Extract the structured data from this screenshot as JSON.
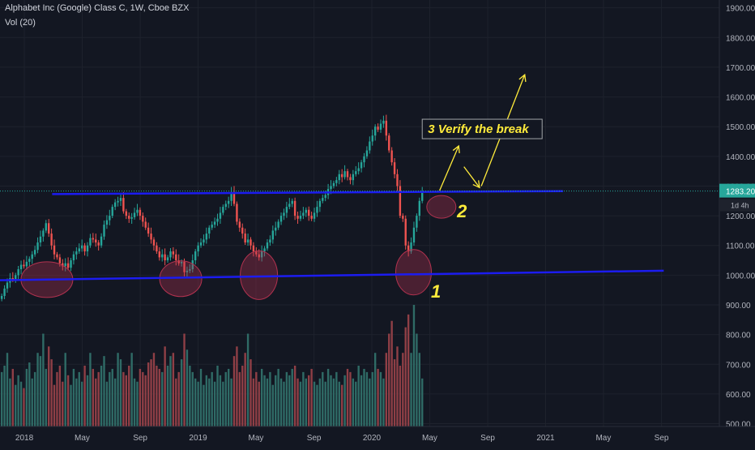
{
  "chart": {
    "title": "Alphabet Inc (Google) Class C, 1W, Cboe BZX",
    "volume_label": "Vol (20)"
  },
  "colors": {
    "background": "#131722",
    "up": "#26a69a",
    "down": "#ef5350",
    "vol_up": "#2f6b66",
    "vol_down": "#8f3f46",
    "trendline": "#1c1cf0",
    "annotation": "#ffeb3b",
    "circle": "#b2324f",
    "axis_text": "#b2b5be",
    "price_tag": "#26a69a"
  },
  "chart_data": {
    "type": "candlestick",
    "y_ticks": [
      "1900.00",
      "1800.00",
      "1700.00",
      "1600.00",
      "1500.00",
      "1400.00",
      "1300.00",
      "1200.00",
      "1100.00",
      "1000.00",
      "900.00",
      "800.00",
      "700.00",
      "600.00",
      "500.00"
    ],
    "y_tick_values": [
      1900,
      1800,
      1700,
      1600,
      1500,
      1400,
      1300,
      1200,
      1100,
      1000,
      900,
      800,
      700,
      600,
      500
    ],
    "ylim": [
      496,
      1910
    ],
    "x_ticks": [
      {
        "label": "2018",
        "t": 2018.0
      },
      {
        "label": "May",
        "t": 2018.333
      },
      {
        "label": "Sep",
        "t": 2018.667
      },
      {
        "label": "2019",
        "t": 2019.0
      },
      {
        "label": "May",
        "t": 2019.333
      },
      {
        "label": "Sep",
        "t": 2019.667
      },
      {
        "label": "2020",
        "t": 2020.0
      },
      {
        "label": "May",
        "t": 2020.333
      },
      {
        "label": "Sep",
        "t": 2020.667
      },
      {
        "label": "2021",
        "t": 2021.0
      },
      {
        "label": "May",
        "t": 2021.333
      },
      {
        "label": "Sep",
        "t": 2021.667
      }
    ],
    "xlim": [
      2017.86,
      2022.0
    ],
    "last_price": {
      "value": 1283.2,
      "label": "1283.20",
      "countdown": "1d 4h"
    },
    "closes": [
      930,
      955,
      975,
      990,
      985,
      1000,
      1020,
      1035,
      1030,
      1045,
      1055,
      1070,
      1085,
      1110,
      1130,
      1150,
      1175,
      1140,
      1100,
      1070,
      1060,
      1040,
      1030,
      1040,
      1025,
      1050,
      1070,
      1080,
      1090,
      1100,
      1080,
      1100,
      1125,
      1120,
      1110,
      1100,
      1130,
      1170,
      1185,
      1200,
      1230,
      1245,
      1250,
      1260,
      1215,
      1200,
      1190,
      1195,
      1210,
      1220,
      1200,
      1180,
      1160,
      1140,
      1120,
      1100,
      1080,
      1060,
      1070,
      1050,
      1060,
      1080,
      1070,
      1050,
      1040,
      1045,
      1010,
      1015,
      1020,
      1050,
      1080,
      1100,
      1110,
      1120,
      1140,
      1160,
      1170,
      1180,
      1190,
      1210,
      1230,
      1240,
      1250,
      1280,
      1240,
      1180,
      1160,
      1140,
      1110,
      1120,
      1100,
      1080,
      1070,
      1060,
      1080,
      1090,
      1110,
      1120,
      1150,
      1160,
      1180,
      1200,
      1210,
      1230,
      1240,
      1250,
      1200,
      1190,
      1200,
      1210,
      1220,
      1200,
      1190,
      1210,
      1230,
      1250,
      1260,
      1270,
      1290,
      1300,
      1310,
      1320,
      1340,
      1330,
      1350,
      1330,
      1320,
      1340,
      1350,
      1360,
      1380,
      1400,
      1420,
      1450,
      1470,
      1500,
      1490,
      1510,
      1520,
      1470,
      1420,
      1380,
      1340,
      1300,
      1200,
      1190,
      1100,
      1080,
      1110,
      1160,
      1200,
      1250,
      1283
    ]
  },
  "volume_data": [
    640,
    660,
    700,
    620,
    650,
    600,
    630,
    610,
    590,
    650,
    670,
    620,
    640,
    700,
    690,
    760,
    650,
    720,
    680,
    600,
    640,
    660,
    610,
    700,
    630,
    600,
    650,
    620,
    640,
    610,
    660,
    630,
    700,
    650,
    620,
    640,
    660,
    690,
    610,
    640,
    650,
    620,
    700,
    680,
    640,
    630,
    660,
    700,
    620,
    610,
    650,
    640,
    630,
    670,
    680,
    700,
    660,
    650,
    640,
    720,
    660,
    690,
    700,
    620,
    640,
    680,
    760,
    710,
    660,
    640,
    620,
    610,
    650,
    600,
    630,
    620,
    640,
    610,
    660,
    630,
    610,
    640,
    650,
    620,
    690,
    720,
    640,
    660,
    700,
    760,
    680,
    620,
    640,
    610,
    650,
    630,
    620,
    640,
    600,
    630,
    650,
    620,
    610,
    640,
    630,
    650,
    660,
    620,
    610,
    640,
    620,
    630,
    650,
    610,
    600,
    620,
    640,
    610,
    650,
    630,
    620,
    640,
    610,
    600,
    630,
    650,
    640,
    620,
    610,
    660,
    630,
    650,
    640,
    620,
    640,
    700,
    650,
    640,
    620,
    700,
    760,
    800,
    680,
    720,
    660,
    700,
    780,
    820,
    700,
    850,
    760,
    700,
    620
  ],
  "annotations": {
    "verify_break": "3 Verify the break",
    "label_1": "1",
    "label_2": "2"
  }
}
